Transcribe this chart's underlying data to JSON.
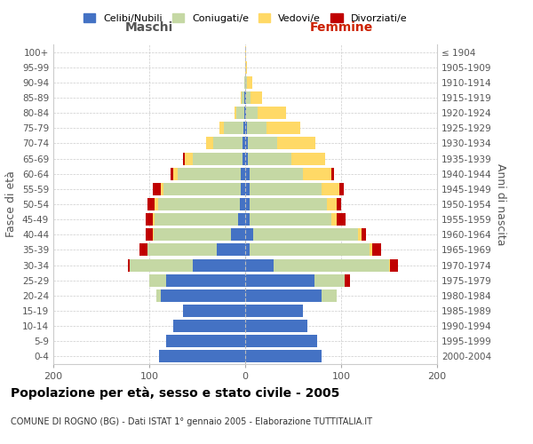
{
  "age_groups": [
    "0-4",
    "5-9",
    "10-14",
    "15-19",
    "20-24",
    "25-29",
    "30-34",
    "35-39",
    "40-44",
    "45-49",
    "50-54",
    "55-59",
    "60-64",
    "65-69",
    "70-74",
    "75-79",
    "80-84",
    "85-89",
    "90-94",
    "95-99",
    "100+"
  ],
  "birth_years": [
    "2000-2004",
    "1995-1999",
    "1990-1994",
    "1985-1989",
    "1980-1984",
    "1975-1979",
    "1970-1974",
    "1965-1969",
    "1960-1964",
    "1955-1959",
    "1950-1954",
    "1945-1949",
    "1940-1944",
    "1935-1939",
    "1930-1934",
    "1925-1929",
    "1920-1924",
    "1915-1919",
    "1910-1914",
    "1905-1909",
    "≤ 1904"
  ],
  "male_single": [
    90,
    82,
    75,
    65,
    88,
    82,
    55,
    30,
    15,
    7,
    6,
    5,
    5,
    3,
    3,
    2,
    1,
    1,
    0,
    0,
    0
  ],
  "male_married": [
    0,
    0,
    0,
    0,
    5,
    18,
    65,
    72,
    80,
    87,
    85,
    80,
    65,
    52,
    30,
    20,
    8,
    3,
    1,
    0,
    0
  ],
  "male_widowed": [
    0,
    0,
    0,
    0,
    0,
    0,
    0,
    0,
    1,
    2,
    3,
    3,
    5,
    8,
    8,
    5,
    2,
    1,
    0,
    0,
    0
  ],
  "male_divorced": [
    0,
    0,
    0,
    0,
    0,
    0,
    2,
    8,
    8,
    8,
    8,
    8,
    3,
    2,
    0,
    0,
    0,
    0,
    0,
    0,
    0
  ],
  "female_single": [
    80,
    75,
    65,
    60,
    80,
    72,
    30,
    5,
    8,
    5,
    5,
    5,
    5,
    3,
    3,
    2,
    1,
    1,
    0,
    0,
    0
  ],
  "female_married": [
    0,
    0,
    0,
    0,
    15,
    32,
    120,
    125,
    110,
    85,
    80,
    75,
    55,
    45,
    30,
    20,
    12,
    5,
    2,
    0,
    0
  ],
  "female_widowed": [
    0,
    0,
    0,
    0,
    0,
    0,
    1,
    2,
    3,
    5,
    10,
    18,
    30,
    35,
    40,
    35,
    30,
    12,
    5,
    2,
    1
  ],
  "female_divorced": [
    0,
    0,
    0,
    0,
    0,
    5,
    8,
    10,
    5,
    10,
    5,
    5,
    3,
    0,
    0,
    0,
    0,
    0,
    0,
    0,
    0
  ],
  "colors": {
    "single": "#4472c4",
    "married": "#c5d8a4",
    "widowed": "#ffd966",
    "divorced": "#c00000"
  },
  "xlim": 200,
  "title": "Popolazione per età, sesso e stato civile - 2005",
  "subtitle": "COMUNE DI ROGNO (BG) - Dati ISTAT 1° gennaio 2005 - Elaborazione TUTTITALIA.IT",
  "ylabel_left": "Fasce di età",
  "ylabel_right": "Anni di nascita",
  "xlabel_left": "Maschi",
  "xlabel_right": "Femmine",
  "bg_color": "#ffffff",
  "grid_color": "#cccccc"
}
